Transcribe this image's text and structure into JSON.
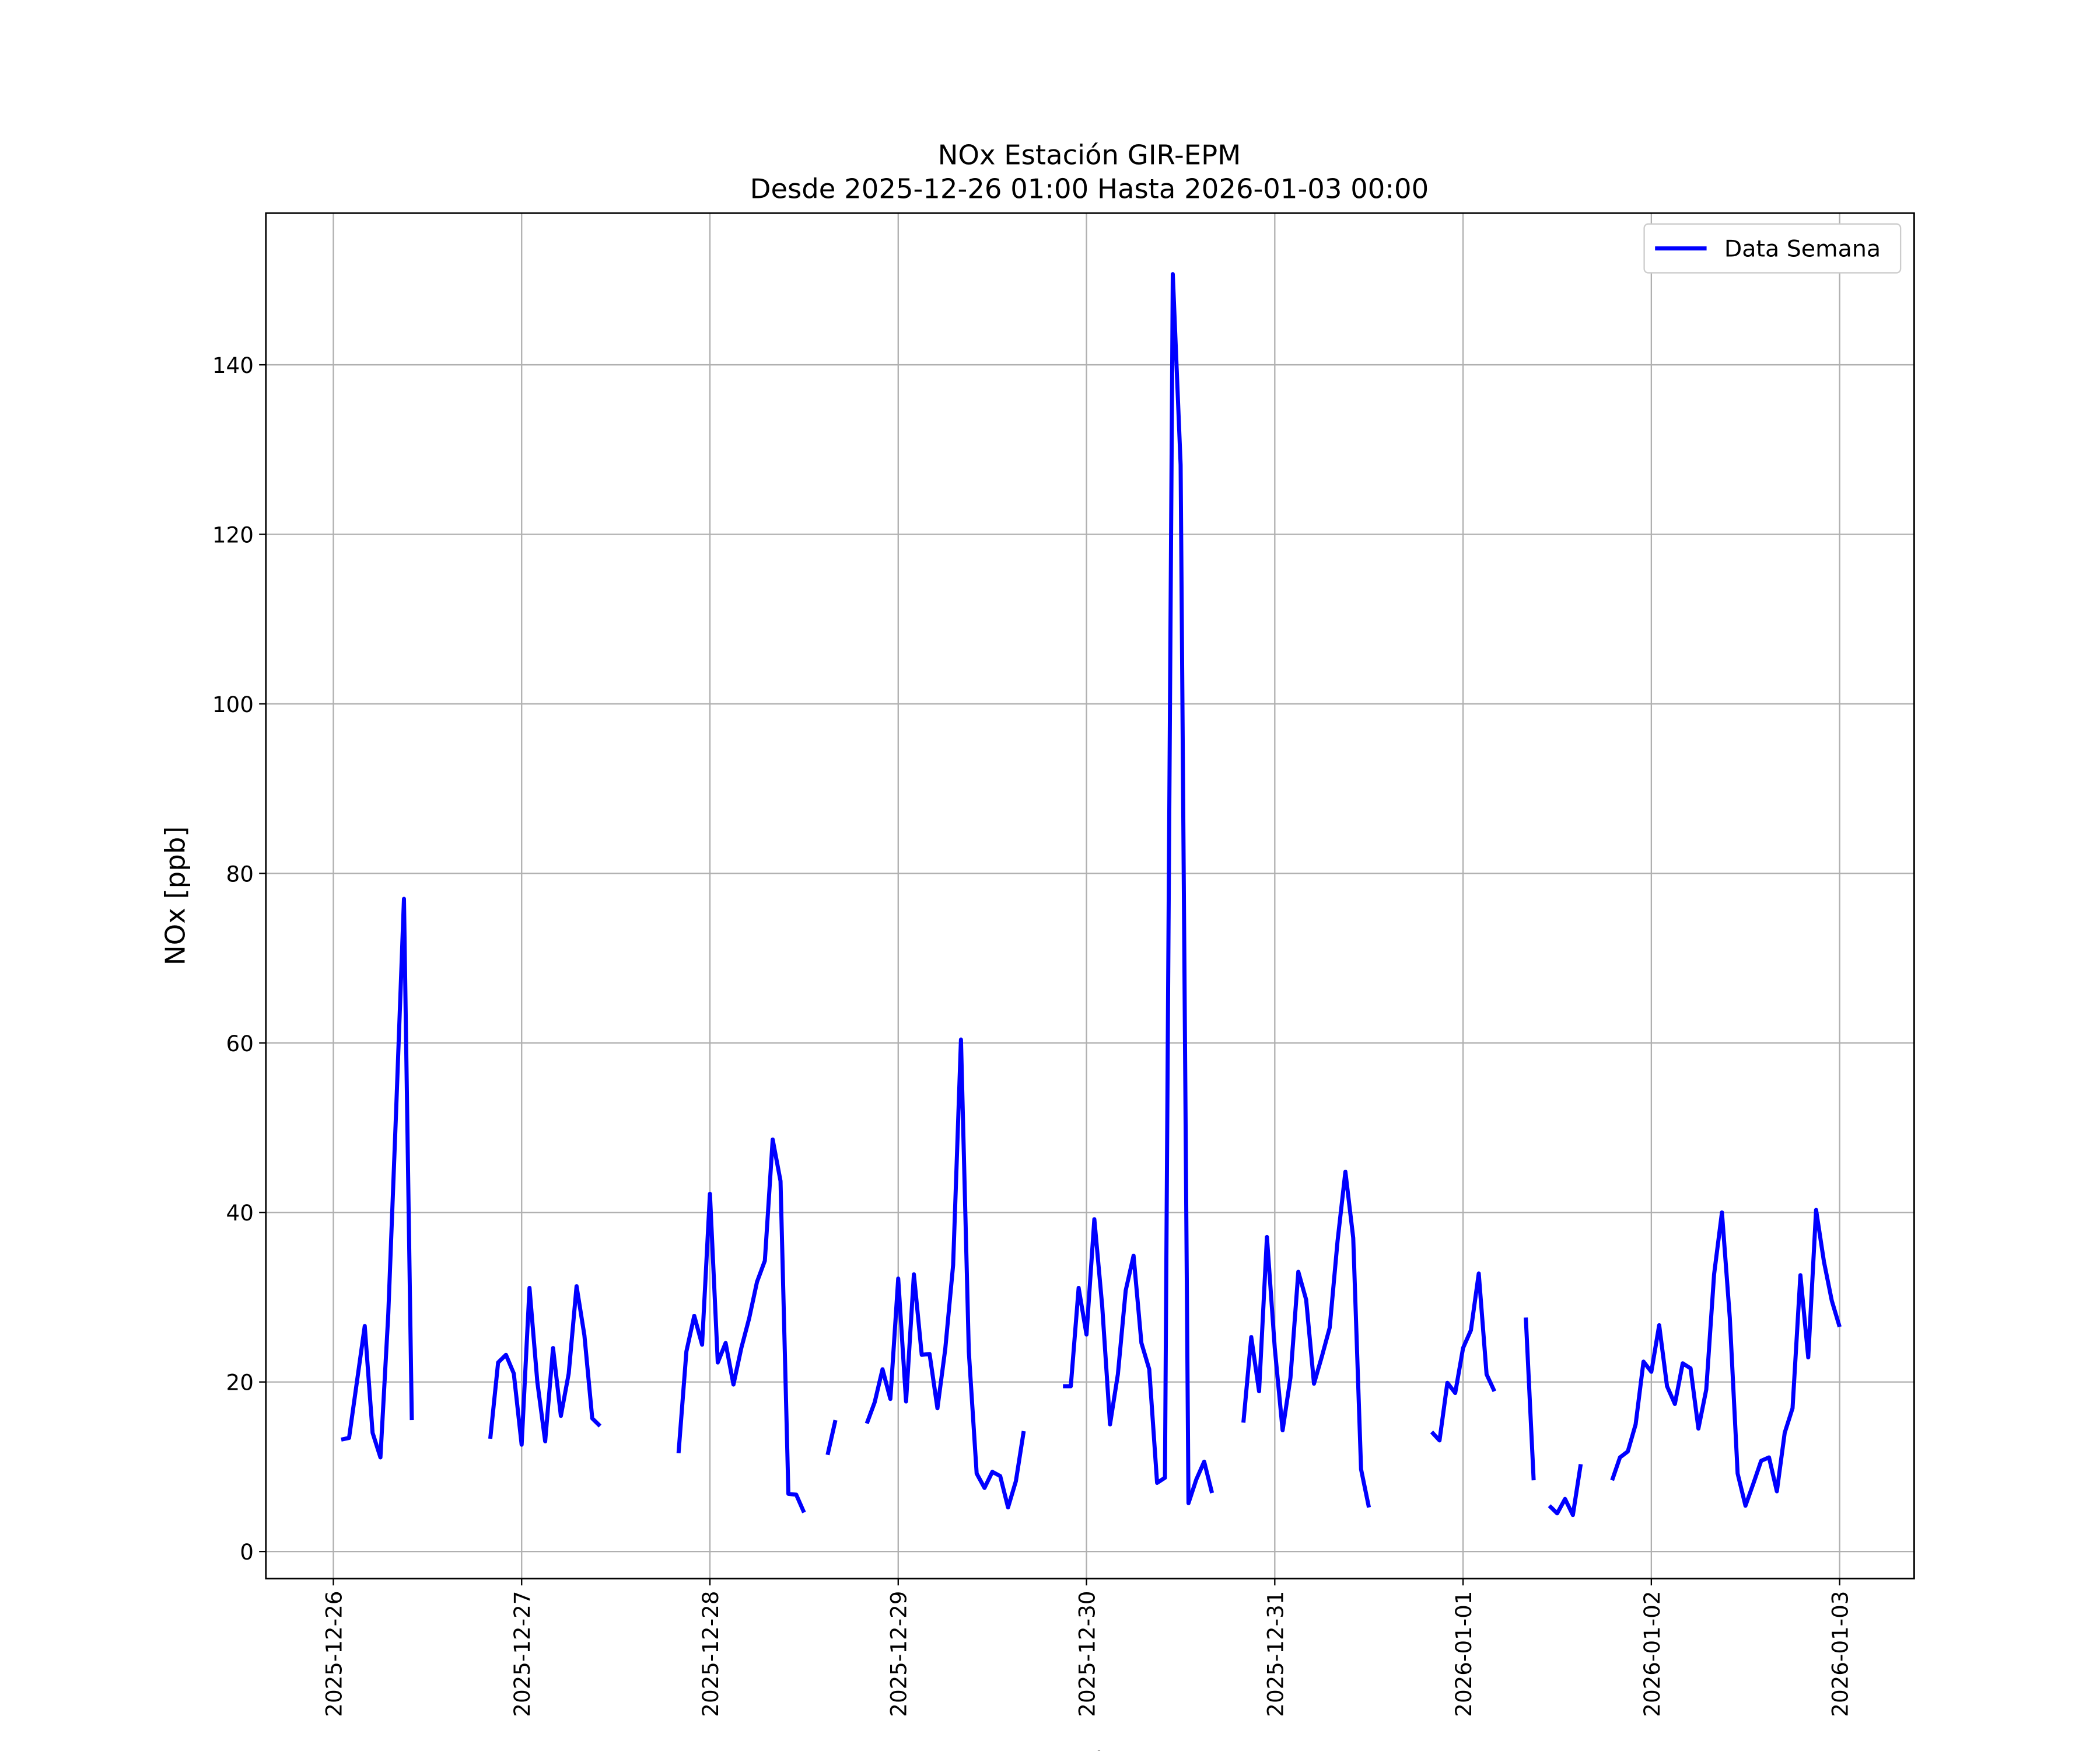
{
  "chart_data": {
    "type": "line",
    "title": "NOx Estación GIR-EPM",
    "subtitle": "Desde 2025-12-26 01:00 Hasta 2026-01-03 00:00",
    "x_label": "Fecha",
    "y_label": "NOx [ppb]",
    "x": [
      "2025-12-26 01:00",
      "2025-12-26 02:00",
      "2025-12-26 03:00",
      "2025-12-26 04:00",
      "2025-12-26 05:00",
      "2025-12-26 06:00",
      "2025-12-26 07:00",
      "2025-12-26 08:00",
      "2025-12-26 09:00",
      "2025-12-26 10:00",
      "2025-12-26 11:00",
      "2025-12-26 12:00",
      "2025-12-26 13:00",
      "2025-12-26 14:00",
      "2025-12-26 15:00",
      "2025-12-26 16:00",
      "2025-12-26 17:00",
      "2025-12-26 18:00",
      "2025-12-26 19:00",
      "2025-12-26 20:00",
      "2025-12-26 21:00",
      "2025-12-26 22:00",
      "2025-12-26 23:00",
      "2025-12-27 00:00",
      "2025-12-27 01:00",
      "2025-12-27 02:00",
      "2025-12-27 03:00",
      "2025-12-27 04:00",
      "2025-12-27 05:00",
      "2025-12-27 06:00",
      "2025-12-27 07:00",
      "2025-12-27 08:00",
      "2025-12-27 09:00",
      "2025-12-27 10:00",
      "2025-12-27 11:00",
      "2025-12-27 12:00",
      "2025-12-27 13:00",
      "2025-12-27 14:00",
      "2025-12-27 15:00",
      "2025-12-27 16:00",
      "2025-12-27 17:00",
      "2025-12-27 18:00",
      "2025-12-27 19:00",
      "2025-12-27 20:00",
      "2025-12-27 21:00",
      "2025-12-27 22:00",
      "2025-12-27 23:00",
      "2025-12-28 00:00",
      "2025-12-28 01:00",
      "2025-12-28 02:00",
      "2025-12-28 03:00",
      "2025-12-28 04:00",
      "2025-12-28 05:00",
      "2025-12-28 06:00",
      "2025-12-28 07:00",
      "2025-12-28 08:00",
      "2025-12-28 09:00",
      "2025-12-28 10:00",
      "2025-12-28 11:00",
      "2025-12-28 12:00",
      "2025-12-28 13:00",
      "2025-12-28 14:00",
      "2025-12-28 15:00",
      "2025-12-28 16:00",
      "2025-12-28 17:00",
      "2025-12-28 18:00",
      "2025-12-28 19:00",
      "2025-12-28 20:00",
      "2025-12-28 21:00",
      "2025-12-28 22:00",
      "2025-12-28 23:00",
      "2025-12-29 00:00",
      "2025-12-29 01:00",
      "2025-12-29 02:00",
      "2025-12-29 03:00",
      "2025-12-29 04:00",
      "2025-12-29 05:00",
      "2025-12-29 06:00",
      "2025-12-29 07:00",
      "2025-12-29 08:00",
      "2025-12-29 09:00",
      "2025-12-29 10:00",
      "2025-12-29 11:00",
      "2025-12-29 12:00",
      "2025-12-29 13:00",
      "2025-12-29 14:00",
      "2025-12-29 15:00",
      "2025-12-29 16:00",
      "2025-12-29 17:00",
      "2025-12-29 18:00",
      "2025-12-29 19:00",
      "2025-12-29 20:00",
      "2025-12-29 21:00",
      "2025-12-29 22:00",
      "2025-12-29 23:00",
      "2025-12-30 00:00",
      "2025-12-30 01:00",
      "2025-12-30 02:00",
      "2025-12-30 03:00",
      "2025-12-30 04:00",
      "2025-12-30 05:00",
      "2025-12-30 06:00",
      "2025-12-30 07:00",
      "2025-12-30 08:00",
      "2025-12-30 09:00",
      "2025-12-30 10:00",
      "2025-12-30 11:00",
      "2025-12-30 12:00",
      "2025-12-30 13:00",
      "2025-12-30 14:00",
      "2025-12-30 15:00",
      "2025-12-30 16:00",
      "2025-12-30 17:00",
      "2025-12-30 18:00",
      "2025-12-30 19:00",
      "2025-12-30 20:00",
      "2025-12-30 21:00",
      "2025-12-30 22:00",
      "2025-12-30 23:00",
      "2025-12-31 00:00",
      "2025-12-31 01:00",
      "2025-12-31 02:00",
      "2025-12-31 03:00",
      "2025-12-31 04:00",
      "2025-12-31 05:00",
      "2025-12-31 06:00",
      "2025-12-31 07:00",
      "2025-12-31 08:00",
      "2025-12-31 09:00",
      "2025-12-31 10:00",
      "2025-12-31 11:00",
      "2025-12-31 12:00",
      "2025-12-31 13:00",
      "2025-12-31 14:00",
      "2025-12-31 15:00",
      "2025-12-31 16:00",
      "2025-12-31 17:00",
      "2025-12-31 18:00",
      "2025-12-31 19:00",
      "2025-12-31 20:00",
      "2025-12-31 21:00",
      "2025-12-31 22:00",
      "2025-12-31 23:00",
      "2026-01-01 00:00",
      "2026-01-01 01:00",
      "2026-01-01 02:00",
      "2026-01-01 03:00",
      "2026-01-01 04:00",
      "2026-01-01 05:00",
      "2026-01-01 06:00",
      "2026-01-01 07:00",
      "2026-01-01 08:00",
      "2026-01-01 09:00",
      "2026-01-01 10:00",
      "2026-01-01 11:00",
      "2026-01-01 12:00",
      "2026-01-01 13:00",
      "2026-01-01 14:00",
      "2026-01-01 15:00",
      "2026-01-01 16:00",
      "2026-01-01 17:00",
      "2026-01-01 18:00",
      "2026-01-01 19:00",
      "2026-01-01 20:00",
      "2026-01-01 21:00",
      "2026-01-01 22:00",
      "2026-01-01 23:00",
      "2026-01-02 00:00",
      "2026-01-02 01:00",
      "2026-01-02 02:00",
      "2026-01-02 03:00",
      "2026-01-02 04:00",
      "2026-01-02 05:00",
      "2026-01-02 06:00",
      "2026-01-02 07:00",
      "2026-01-02 08:00",
      "2026-01-02 09:00",
      "2026-01-02 10:00",
      "2026-01-02 11:00",
      "2026-01-02 12:00",
      "2026-01-02 13:00",
      "2026-01-02 14:00",
      "2026-01-02 15:00",
      "2026-01-02 16:00",
      "2026-01-02 17:00",
      "2026-01-02 18:00",
      "2026-01-02 19:00",
      "2026-01-02 20:00",
      "2026-01-02 21:00",
      "2026-01-02 22:00",
      "2026-01-02 23:00",
      "2026-01-03 00:00"
    ],
    "series": [
      {
        "name": "Data Semana",
        "color": "#0000ff",
        "values": [
          13.2,
          13.4,
          20,
          26.6,
          14,
          11.1,
          28,
          52,
          77,
          15.5,
          null,
          null,
          null,
          null,
          null,
          null,
          null,
          null,
          null,
          13.3,
          22.3,
          23.2,
          21,
          12.6,
          31.1,
          20,
          13,
          24,
          16,
          21,
          31.3,
          25.5,
          15.7,
          14.8,
          null,
          null,
          null,
          null,
          null,
          null,
          null,
          null,
          null,
          11.6,
          23.6,
          27.8,
          24.4,
          42.2,
          22.3,
          24.6,
          19.7,
          24,
          27.5,
          31.8,
          34.3,
          48.6,
          43.7,
          6.8,
          6.7,
          4.6,
          null,
          null,
          11.4,
          15.5,
          null,
          null,
          null,
          15.1,
          17.6,
          21.5,
          18,
          32.2,
          17.7,
          32.7,
          23.2,
          23.3,
          16.9,
          23.9,
          33.8,
          60.4,
          23.6,
          9.2,
          7.5,
          9.4,
          8.9,
          5.2,
          8.3,
          14.2,
          null,
          null,
          null,
          null,
          19.5,
          19.5,
          31.1,
          25.6,
          39.2,
          29,
          15,
          20.9,
          30.8,
          34.9,
          24.6,
          21.5,
          8.1,
          8.7,
          150.7,
          128.2,
          5.7,
          8.5,
          10.6,
          6.9,
          null,
          null,
          null,
          15.2,
          25.3,
          18.9,
          37.1,
          24,
          14.3,
          20.5,
          33,
          29.7,
          19.8,
          23,
          26.4,
          36.6,
          44.8,
          37,
          9.7,
          5.2,
          null,
          null,
          null,
          null,
          null,
          null,
          null,
          14.1,
          13.1,
          19.9,
          18.7,
          24,
          26.1,
          32.8,
          20.9,
          18.9,
          null,
          null,
          null,
          27.6,
          8.4,
          null,
          5.4,
          4.5,
          6.2,
          4.3,
          10.3,
          null,
          null,
          null,
          8.4,
          11.1,
          11.8,
          15,
          22.4,
          21.2,
          26.7,
          19.5,
          17.4,
          22.2,
          21.6,
          14.5,
          19.1,
          32.7,
          40,
          27.6,
          9.2,
          5.4,
          8,
          10.7,
          11.1,
          7.1,
          14,
          16.9,
          32.6,
          22.9,
          40.3,
          34.2,
          29.6,
          26.5
        ]
      }
    ],
    "xlim": [
      "2025-12-25 15:24",
      "2026-01-03 09:30"
    ],
    "xticks": [
      "2025-12-26",
      "2025-12-27",
      "2025-12-28",
      "2025-12-29",
      "2025-12-30",
      "2025-12-31",
      "2026-01-01",
      "2026-01-02",
      "2026-01-03"
    ],
    "ylim": [
      -3.2,
      157.9
    ],
    "yticks": [
      0,
      20,
      40,
      60,
      80,
      100,
      120,
      140
    ],
    "grid": true,
    "legend": "upper right"
  }
}
